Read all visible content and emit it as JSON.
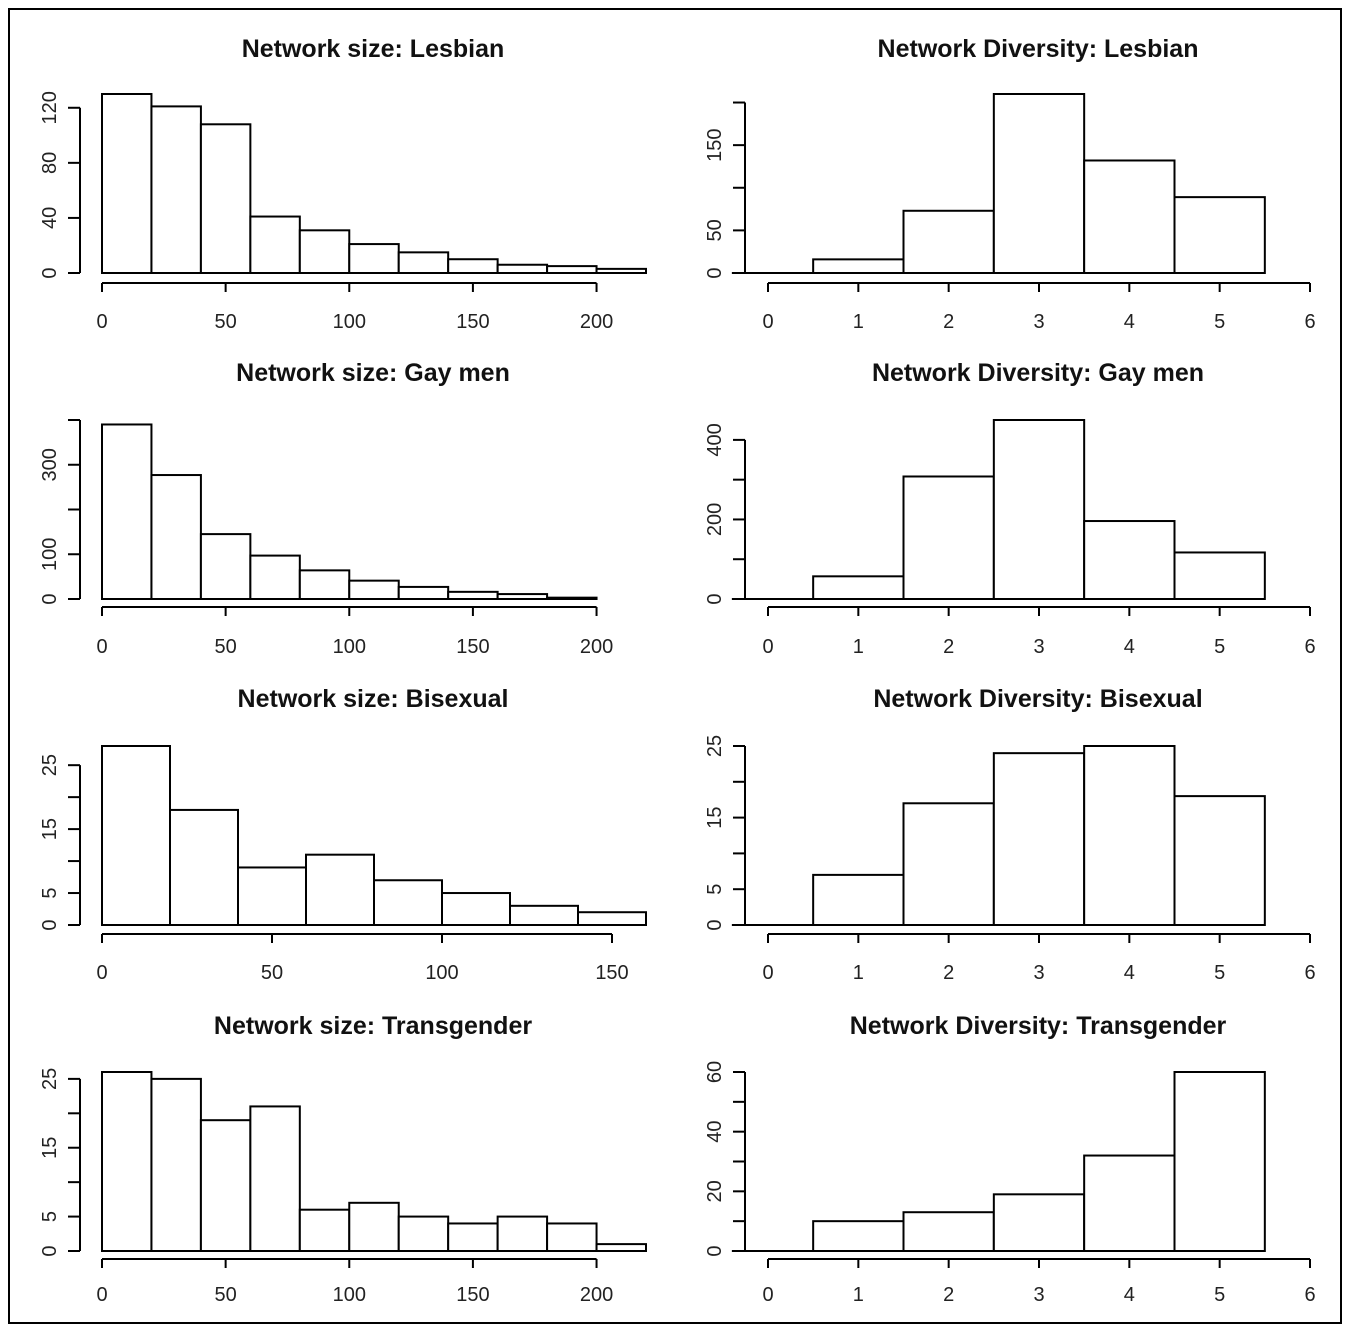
{
  "chart_data": [
    {
      "type": "bar",
      "title": "Network size: Lesbian",
      "bin_edges": [
        0,
        20,
        40,
        60,
        80,
        100,
        120,
        140,
        160,
        180,
        200,
        220
      ],
      "values": [
        130,
        121,
        108,
        41,
        31,
        21,
        15,
        10,
        6,
        5,
        3
      ],
      "xlim": [
        0,
        220
      ],
      "ylim": [
        0,
        130
      ],
      "xticks": [
        0,
        50,
        100,
        150,
        200
      ],
      "yticks": [
        0,
        40,
        80,
        120
      ]
    },
    {
      "type": "bar",
      "title": "Network Diversity: Lesbian",
      "bin_edges": [
        -0.5,
        0.5,
        1.5,
        2.5,
        3.5,
        4.5,
        5.5
      ],
      "values": [
        0,
        16,
        73,
        210,
        132,
        89
      ],
      "xlim": [
        0,
        6
      ],
      "ylim": [
        0,
        210
      ],
      "xticks": [
        0,
        1,
        2,
        3,
        4,
        5,
        6
      ],
      "yticks": [
        0,
        50,
        150
      ],
      "minor_yticks": [
        100,
        200
      ]
    },
    {
      "type": "bar",
      "title": "Network size: Gay men",
      "bin_edges": [
        0,
        20,
        40,
        60,
        80,
        100,
        120,
        140,
        160,
        180,
        200
      ],
      "values": [
        390,
        277,
        145,
        97,
        64,
        41,
        27,
        16,
        11,
        3
      ],
      "xlim": [
        0,
        220
      ],
      "ylim": [
        0,
        400
      ],
      "xticks": [
        0,
        50,
        100,
        150,
        200
      ],
      "yticks": [
        0,
        100,
        300
      ],
      "minor_yticks": [
        200,
        400
      ]
    },
    {
      "type": "bar",
      "title": "Network Diversity: Gay men",
      "bin_edges": [
        -0.5,
        0.5,
        1.5,
        2.5,
        3.5,
        4.5,
        5.5
      ],
      "values": [
        0,
        57,
        308,
        450,
        196,
        117
      ],
      "xlim": [
        0,
        6
      ],
      "ylim": [
        0,
        450
      ],
      "xticks": [
        0,
        1,
        2,
        3,
        4,
        5,
        6
      ],
      "yticks": [
        0,
        200,
        400
      ],
      "minor_yticks": [
        100,
        300
      ]
    },
    {
      "type": "bar",
      "title": "Network size: Bisexual",
      "bin_edges": [
        0,
        20,
        40,
        60,
        80,
        100,
        120,
        140,
        160
      ],
      "values": [
        28,
        18,
        9,
        11,
        7,
        5,
        3,
        2
      ],
      "xlim": [
        0,
        160
      ],
      "ylim": [
        0,
        28
      ],
      "xticks": [
        0,
        50,
        100,
        150
      ],
      "yticks": [
        0,
        5,
        15,
        25
      ],
      "minor_yticks": [
        10,
        20
      ]
    },
    {
      "type": "bar",
      "title": "Network Diversity: Bisexual",
      "bin_edges": [
        -0.5,
        0.5,
        1.5,
        2.5,
        3.5,
        4.5,
        5.5
      ],
      "values": [
        0,
        7,
        17,
        24,
        25,
        18
      ],
      "xlim": [
        0,
        6
      ],
      "ylim": [
        0,
        25
      ],
      "xticks": [
        0,
        1,
        2,
        3,
        4,
        5,
        6
      ],
      "yticks": [
        0,
        5,
        15,
        25
      ],
      "minor_yticks": [
        10,
        20
      ]
    },
    {
      "type": "bar",
      "title": "Network size: Transgender",
      "bin_edges": [
        0,
        20,
        40,
        60,
        80,
        100,
        120,
        140,
        160,
        180,
        200,
        220
      ],
      "values": [
        26,
        25,
        19,
        21,
        6,
        7,
        5,
        4,
        5,
        4,
        1
      ],
      "xlim": [
        0,
        220
      ],
      "ylim": [
        0,
        26
      ],
      "xticks": [
        0,
        50,
        100,
        150,
        200
      ],
      "yticks": [
        0,
        5,
        15,
        25
      ],
      "minor_yticks": [
        10,
        20
      ]
    },
    {
      "type": "bar",
      "title": "Network Diversity: Transgender",
      "bin_edges": [
        -0.5,
        0.5,
        1.5,
        2.5,
        3.5,
        4.5,
        5.5
      ],
      "values": [
        0,
        10,
        13,
        19,
        32,
        60
      ],
      "xlim": [
        0,
        6
      ],
      "ylim": [
        0,
        60
      ],
      "xticks": [
        0,
        1,
        2,
        3,
        4,
        5,
        6
      ],
      "yticks": [
        0,
        20,
        40,
        60
      ],
      "minor_yticks": [
        10,
        30,
        50
      ]
    }
  ]
}
